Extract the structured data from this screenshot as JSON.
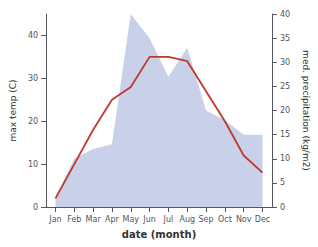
{
  "chart_data": {
    "type": "line",
    "xlabel": "date (month)",
    "ylabel": "max temp (C)",
    "y2label": "med. precipitation (kg/m2)",
    "categories": [
      "Jan",
      "Feb",
      "Mar",
      "Apr",
      "May",
      "Jun",
      "Jul",
      "Aug",
      "Sep",
      "Oct",
      "Nov",
      "Dec"
    ],
    "series": [
      {
        "type": "area",
        "axis": "y2",
        "color": "#c8d0ea",
        "values": [
          2,
          10,
          12,
          13,
          40,
          35,
          27,
          33,
          20,
          18,
          15,
          15
        ]
      },
      {
        "type": "line",
        "color": "#c0392b",
        "values": [
          2,
          10,
          18,
          25,
          28,
          35,
          35,
          34,
          27,
          20,
          12,
          8
        ]
      }
    ],
    "ylim": [
      0,
      45
    ],
    "yticks": [
      0,
      10,
      20,
      30,
      40
    ],
    "y2lim": [
      0,
      40
    ],
    "y2ticks": [
      0,
      5,
      10,
      15,
      20,
      25,
      30,
      35,
      40
    ],
    "grid": false
  }
}
